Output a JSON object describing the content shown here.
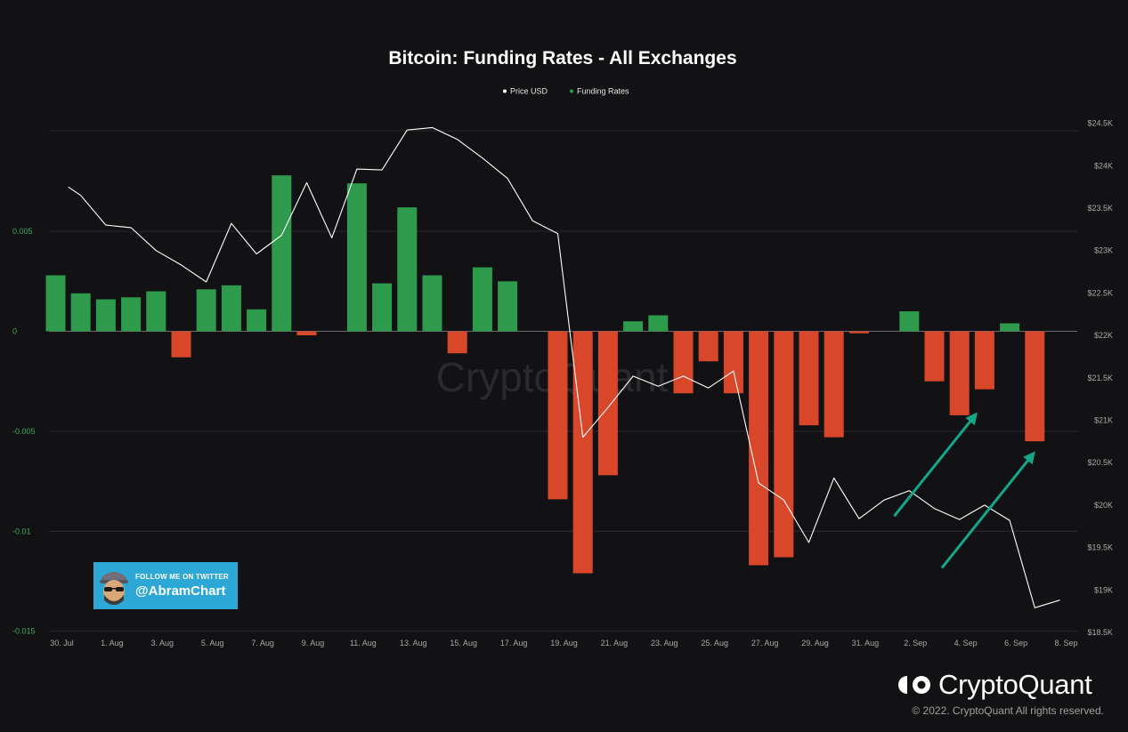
{
  "chart_data": {
    "type": "bar+line",
    "title": "Bitcoin: Funding Rates - All Exchanges",
    "legend": [
      {
        "label": "Price USD",
        "color": "#ffffff"
      },
      {
        "label": "Funding Rates",
        "color": "#2e9a4c"
      }
    ],
    "colors": {
      "positive": "#2e9a4c",
      "negative": "#d9472b",
      "price_line": "#ffffff",
      "arrows": "#17a589"
    },
    "y_left": {
      "ticks": [
        0.005,
        0,
        -0.005,
        -0.01,
        -0.015
      ],
      "tick_labels": [
        "0.005",
        "0",
        "-0.005",
        "-0.01",
        "-0.015"
      ],
      "range": [
        -0.015,
        0.0101
      ]
    },
    "y_right": {
      "ticks": [
        24500,
        24000,
        23500,
        23000,
        22500,
        22000,
        21500,
        21000,
        20500,
        20000,
        19500,
        19000,
        18500
      ],
      "tick_labels": [
        "$24.5K",
        "$24K",
        "$23.5K",
        "$23K",
        "$22.5K",
        "$22K",
        "$21.5K",
        "$21K",
        "$20.5K",
        "$20K",
        "$19.5K",
        "$19K",
        "$18.5K"
      ]
    },
    "x_tick_labels": [
      "30. Jul",
      "1. Aug",
      "3. Aug",
      "5. Aug",
      "7. Aug",
      "9. Aug",
      "11. Aug",
      "13. Aug",
      "15. Aug",
      "17. Aug",
      "19. Aug",
      "21. Aug",
      "23. Aug",
      "25. Aug",
      "27. Aug",
      "29. Aug",
      "31. Aug",
      "2. Sep",
      "4. Sep",
      "6. Sep",
      "8. Sep"
    ],
    "funding_rates": [
      {
        "date": "2022-07-30",
        "value": 0.0028
      },
      {
        "date": "2022-07-31",
        "value": 0.0019
      },
      {
        "date": "2022-08-01",
        "value": 0.0016
      },
      {
        "date": "2022-08-02",
        "value": 0.0017
      },
      {
        "date": "2022-08-03",
        "value": 0.002
      },
      {
        "date": "2022-08-04",
        "value": -0.0013
      },
      {
        "date": "2022-08-05",
        "value": 0.0021
      },
      {
        "date": "2022-08-06",
        "value": 0.0023
      },
      {
        "date": "2022-08-07",
        "value": 0.0011
      },
      {
        "date": "2022-08-08",
        "value": 0.0078
      },
      {
        "date": "2022-08-09",
        "value": -0.0002
      },
      {
        "date": "2022-08-10",
        "value": 0.0
      },
      {
        "date": "2022-08-11",
        "value": 0.0074
      },
      {
        "date": "2022-08-12",
        "value": 0.0024
      },
      {
        "date": "2022-08-13",
        "value": 0.0062
      },
      {
        "date": "2022-08-14",
        "value": 0.0028
      },
      {
        "date": "2022-08-15",
        "value": -0.0011
      },
      {
        "date": "2022-08-16",
        "value": 0.0032
      },
      {
        "date": "2022-08-17",
        "value": 0.0025
      },
      {
        "date": "2022-08-18",
        "value": 0.0
      },
      {
        "date": "2022-08-19",
        "value": -0.0084
      },
      {
        "date": "2022-08-20",
        "value": -0.0121
      },
      {
        "date": "2022-08-21",
        "value": -0.0072
      },
      {
        "date": "2022-08-22",
        "value": 0.0005
      },
      {
        "date": "2022-08-23",
        "value": 0.0008
      },
      {
        "date": "2022-08-24",
        "value": -0.0031
      },
      {
        "date": "2022-08-25",
        "value": -0.0015
      },
      {
        "date": "2022-08-26",
        "value": -0.0031
      },
      {
        "date": "2022-08-27",
        "value": -0.0117
      },
      {
        "date": "2022-08-28",
        "value": -0.0113
      },
      {
        "date": "2022-08-29",
        "value": -0.0047
      },
      {
        "date": "2022-08-30",
        "value": -0.0053
      },
      {
        "date": "2022-08-31",
        "value": -0.0001
      },
      {
        "date": "2022-09-01",
        "value": 0.0
      },
      {
        "date": "2022-09-02",
        "value": 0.001
      },
      {
        "date": "2022-09-03",
        "value": -0.0025
      },
      {
        "date": "2022-09-04",
        "value": -0.0042
      },
      {
        "date": "2022-09-05",
        "value": -0.0029
      },
      {
        "date": "2022-09-06",
        "value": 0.0004
      },
      {
        "date": "2022-09-07",
        "value": -0.0055
      }
    ],
    "price_usd": [
      {
        "x": 29.5,
        "y": 23750
      },
      {
        "x": 30.0,
        "y": 23650
      },
      {
        "x": 31.0,
        "y": 23300
      },
      {
        "x": 32.0,
        "y": 23270
      },
      {
        "x": 33.0,
        "y": 23000
      },
      {
        "x": 34.0,
        "y": 22830
      },
      {
        "x": 35.0,
        "y": 22630
      },
      {
        "x": 36.0,
        "y": 23320
      },
      {
        "x": 37.0,
        "y": 22960
      },
      {
        "x": 38.0,
        "y": 23180
      },
      {
        "x": 39.0,
        "y": 23800
      },
      {
        "x": 40.0,
        "y": 23150
      },
      {
        "x": 41.0,
        "y": 23960
      },
      {
        "x": 42.0,
        "y": 23950
      },
      {
        "x": 43.0,
        "y": 24420
      },
      {
        "x": 44.0,
        "y": 24450
      },
      {
        "x": 45.0,
        "y": 24310
      },
      {
        "x": 46.0,
        "y": 24090
      },
      {
        "x": 47.0,
        "y": 23850
      },
      {
        "x": 48.0,
        "y": 23350
      },
      {
        "x": 49.0,
        "y": 23200
      },
      {
        "x": 50.0,
        "y": 20800
      },
      {
        "x": 51.0,
        "y": 21150
      },
      {
        "x": 52.0,
        "y": 21520
      },
      {
        "x": 53.0,
        "y": 21400
      },
      {
        "x": 54.0,
        "y": 21520
      },
      {
        "x": 55.0,
        "y": 21380
      },
      {
        "x": 56.0,
        "y": 21580
      },
      {
        "x": 57.0,
        "y": 20260
      },
      {
        "x": 58.0,
        "y": 20060
      },
      {
        "x": 59.0,
        "y": 19560
      },
      {
        "x": 60.0,
        "y": 20320
      },
      {
        "x": 61.0,
        "y": 19840
      },
      {
        "x": 62.0,
        "y": 20060
      },
      {
        "x": 63.0,
        "y": 20170
      },
      {
        "x": 64.0,
        "y": 19960
      },
      {
        "x": 65.0,
        "y": 19830
      },
      {
        "x": 66.0,
        "y": 20000
      },
      {
        "x": 67.0,
        "y": 19820
      },
      {
        "x": 68.0,
        "y": 18790
      },
      {
        "x": 69.0,
        "y": 18880
      }
    ],
    "annotations": [
      {
        "type": "arrow",
        "from": {
          "x": 62.4,
          "y": 19870
        },
        "to": {
          "x": 65.6,
          "y": 21050
        }
      },
      {
        "type": "arrow",
        "from": {
          "x": 64.3,
          "y": 19260
        },
        "to": {
          "x": 67.9,
          "y": 20590
        }
      }
    ]
  },
  "watermark": "CryptoQuant",
  "badge": {
    "follow_text": "FOLLOW ME ON TWITTER",
    "handle": "@AbramChart"
  },
  "brand": {
    "name": "CryptoQuant",
    "copyright": "© 2022. CryptoQuant All rights reserved."
  }
}
